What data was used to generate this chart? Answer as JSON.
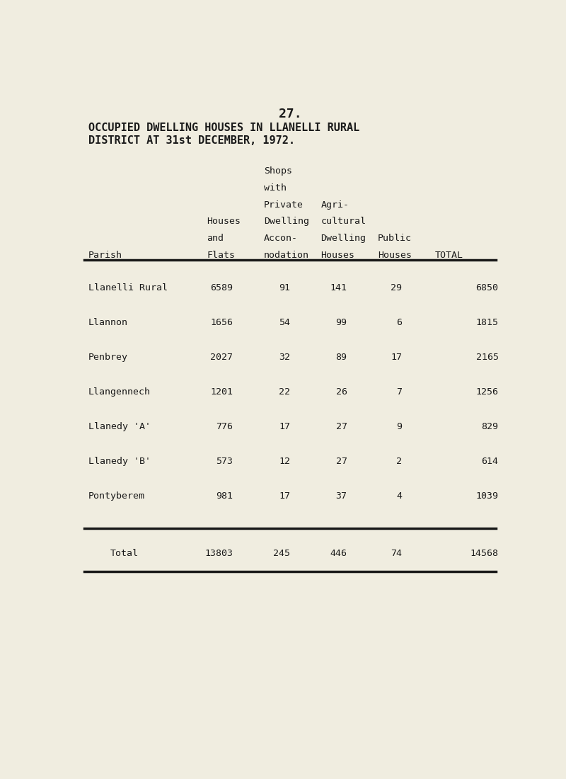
{
  "page_number": "27.",
  "title_line1": "OCCUPIED DWELLING HOUSES IN LLANELLI RURAL",
  "title_line2": "DISTRICT AT 31st DECEMBER, 1972.",
  "bg_color": "#f0ede0",
  "parishes": [
    "Llanelli Rural",
    "Llannon",
    "Penbrey",
    "Llangennech",
    "Llanedy 'A'",
    "Llanedy 'B'",
    "Pontyberem"
  ],
  "houses_flats": [
    6589,
    1656,
    2027,
    1201,
    776,
    573,
    981
  ],
  "shops": [
    91,
    54,
    32,
    22,
    17,
    12,
    17
  ],
  "agricultural": [
    141,
    99,
    89,
    26,
    27,
    27,
    37
  ],
  "public": [
    29,
    6,
    17,
    7,
    9,
    2,
    4
  ],
  "totals": [
    6850,
    1815,
    2165,
    1256,
    829,
    614,
    1039
  ],
  "total_row": [
    "Total",
    13803,
    245,
    446,
    74,
    14568
  ],
  "text_color": "#1a1a1a",
  "font_family": "monospace"
}
